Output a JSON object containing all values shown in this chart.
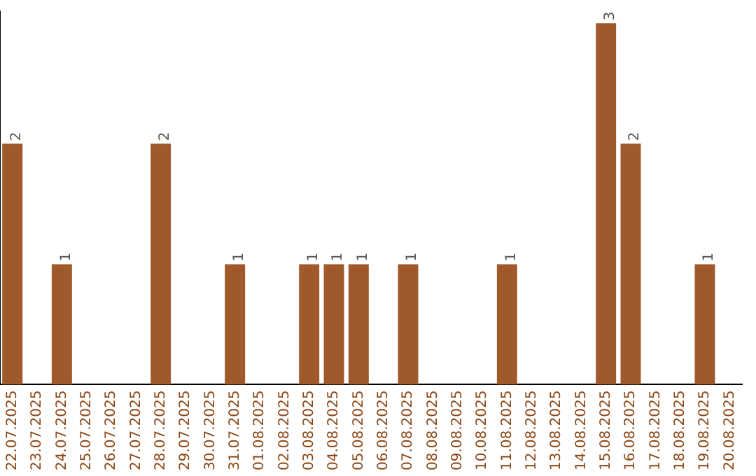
{
  "chart_data": {
    "type": "bar",
    "categories": [
      "22.07.2025",
      "23.07.2025",
      "24.07.2025",
      "25.07.2025",
      "26.07.2025",
      "27.07.2025",
      "28.07.2025",
      "29.07.2025",
      "30.07.2025",
      "31.07.2025",
      "01.08.2025",
      "02.08.2025",
      "03.08.2025",
      "04.08.2025",
      "05.08.2025",
      "06.08.2025",
      "07.08.2025",
      "08.08.2025",
      "09.08.2025",
      "10.08.2025",
      "11.08.2025",
      "12.08.2025",
      "13.08.2025",
      "14.08.2025",
      "15.08.2025",
      "16.08.2025",
      "17.08.2025",
      "18.08.2025",
      "19.08.2025",
      "20.08.2025"
    ],
    "values": [
      2,
      0,
      1,
      0,
      0,
      0,
      2,
      0,
      0,
      1,
      0,
      0,
      1,
      1,
      1,
      0,
      1,
      0,
      0,
      0,
      1,
      0,
      0,
      0,
      3,
      2,
      0,
      0,
      1,
      0
    ],
    "value_labels": [
      "2",
      null,
      "1",
      null,
      null,
      null,
      "2",
      null,
      null,
      "1",
      null,
      null,
      "1",
      "1",
      "1",
      null,
      "1",
      null,
      null,
      null,
      "1",
      null,
      null,
      null,
      "3",
      "2",
      null,
      null,
      "1",
      null
    ],
    "color": "#a0592b",
    "ylim": [
      0,
      3.1
    ],
    "tick_labels": "x",
    "grid": false,
    "legend": false
  }
}
